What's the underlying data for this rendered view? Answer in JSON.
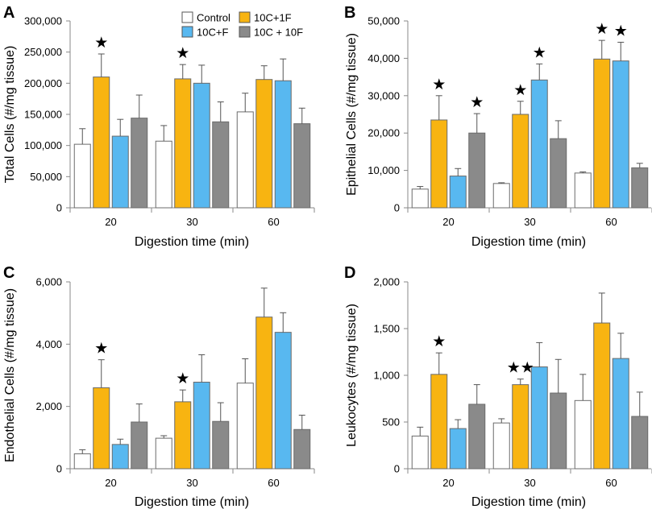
{
  "colors": {
    "Control": "#ffffff",
    "10C+1F": "#f8b411",
    "10C+F": "#58b8f0",
    "10C + 10F": "#8a8a8a"
  },
  "legend": [
    "Control",
    "10C+1F",
    "10C+F",
    "10C + 10F"
  ],
  "chart_data": [
    {
      "panel": "A",
      "type": "bar",
      "ylabel": "Total Cells (#/mg tissue)",
      "xlabel": "Digestion time (min)",
      "categories": [
        "20",
        "30",
        "60"
      ],
      "ylim": [
        0,
        300000
      ],
      "yticks": [
        "0",
        "50,000",
        "100,000",
        "150,000",
        "200,000",
        "250,000",
        "300,000"
      ],
      "legend_shown": true,
      "series": [
        {
          "name": "Control",
          "values": [
            102000,
            107000,
            154000
          ],
          "errors": [
            25000,
            25000,
            30000
          ]
        },
        {
          "name": "10C+1F",
          "values": [
            210000,
            207000,
            206000
          ],
          "errors": [
            37000,
            23000,
            22000
          ]
        },
        {
          "name": "10C+F",
          "values": [
            115000,
            200000,
            204000
          ],
          "errors": [
            27000,
            29000,
            35000
          ]
        },
        {
          "name": "10C + 10F",
          "values": [
            144000,
            138000,
            135000
          ],
          "errors": [
            37000,
            32000,
            25000
          ]
        }
      ],
      "stars": [
        {
          "category": 0,
          "series": 1,
          "text": "★"
        },
        {
          "category": 1,
          "series": 1,
          "text": "★"
        }
      ]
    },
    {
      "panel": "B",
      "type": "bar",
      "ylabel": "Epithelial Cells (#/mg tissue)",
      "xlabel": "Digestion time (min)",
      "categories": [
        "20",
        "30",
        "60"
      ],
      "ylim": [
        0,
        50000
      ],
      "yticks": [
        "0",
        "10,000",
        "20,000",
        "30,000",
        "40,000",
        "50,000"
      ],
      "legend_shown": false,
      "series": [
        {
          "name": "Control",
          "values": [
            5000,
            6500,
            9300
          ],
          "errors": [
            700,
            200,
            300
          ]
        },
        {
          "name": "10C+1F",
          "values": [
            23500,
            25000,
            39800
          ],
          "errors": [
            6500,
            3500,
            5000
          ]
        },
        {
          "name": "10C+F",
          "values": [
            8500,
            34200,
            39300
          ],
          "errors": [
            2000,
            4300,
            5000
          ]
        },
        {
          "name": "10C + 10F",
          "values": [
            20000,
            18500,
            10700
          ],
          "errors": [
            5200,
            4800,
            1200
          ]
        }
      ],
      "stars": [
        {
          "category": 0,
          "series": 1,
          "text": "★"
        },
        {
          "category": 0,
          "series": 3,
          "text": "★"
        },
        {
          "category": 1,
          "series": 1,
          "text": "★"
        },
        {
          "category": 1,
          "series": 2,
          "text": "★"
        },
        {
          "category": 2,
          "series": 1,
          "text": "★"
        },
        {
          "category": 2,
          "series": 2,
          "text": "★"
        }
      ]
    },
    {
      "panel": "C",
      "type": "bar",
      "ylabel": "Endothelial Cells (#/mg tissue)",
      "xlabel": "Digestion time (min)",
      "categories": [
        "20",
        "30",
        "60"
      ],
      "ylim": [
        0,
        6000
      ],
      "yticks": [
        "0",
        "2,000",
        "4,000",
        "6,000"
      ],
      "legend_shown": false,
      "series": [
        {
          "name": "Control",
          "values": [
            480,
            980,
            2750
          ],
          "errors": [
            130,
            80,
            780
          ]
        },
        {
          "name": "10C+1F",
          "values": [
            2600,
            2150,
            4870
          ],
          "errors": [
            900,
            380,
            930
          ]
        },
        {
          "name": "10C+F",
          "values": [
            780,
            2780,
            4380
          ],
          "errors": [
            170,
            880,
            630
          ]
        },
        {
          "name": "10C + 10F",
          "values": [
            1500,
            1520,
            1260
          ],
          "errors": [
            580,
            600,
            460
          ]
        }
      ],
      "stars": [
        {
          "category": 0,
          "series": 1,
          "text": "★"
        },
        {
          "category": 1,
          "series": 1,
          "text": "★"
        }
      ]
    },
    {
      "panel": "D",
      "type": "bar",
      "ylabel": "Leukocytes (#/mg tissue)",
      "xlabel": "Digestion time (min)",
      "categories": [
        "20",
        "30",
        "60"
      ],
      "ylim": [
        0,
        2000
      ],
      "yticks": [
        "0",
        "500",
        "1,000",
        "1,500",
        "2,000"
      ],
      "legend_shown": false,
      "series": [
        {
          "name": "Control",
          "values": [
            350,
            490,
            730
          ],
          "errors": [
            95,
            45,
            280
          ]
        },
        {
          "name": "10C+1F",
          "values": [
            1010,
            900,
            1560
          ],
          "errors": [
            230,
            60,
            320
          ]
        },
        {
          "name": "10C+F",
          "values": [
            430,
            1090,
            1180
          ],
          "errors": [
            95,
            260,
            270
          ]
        },
        {
          "name": "10C + 10F",
          "values": [
            690,
            810,
            560
          ],
          "errors": [
            210,
            360,
            260
          ]
        }
      ],
      "stars": [
        {
          "category": 0,
          "series": 1,
          "text": "★"
        },
        {
          "category": 1,
          "series": 1,
          "text": "★★"
        }
      ]
    }
  ]
}
